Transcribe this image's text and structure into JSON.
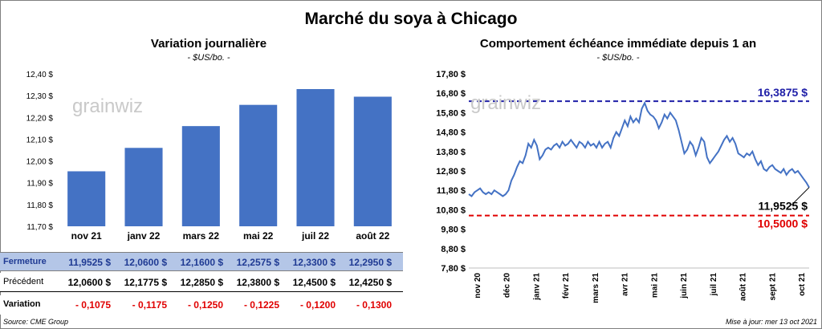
{
  "title": "Marché du soya à Chicago",
  "left_panel": {
    "title": "Variation  journalière",
    "subtitle": "- $US/bo. -"
  },
  "right_panel": {
    "title": "Comportement  échéance immédiate depuis 1 an",
    "subtitle": "- $US/bo. -"
  },
  "watermark": "grainwiz",
  "chart_data": [
    {
      "type": "bar",
      "categories": [
        "nov 21",
        "janv 22",
        "mars 22",
        "mai 22",
        "juil 22",
        "août 22"
      ],
      "values": [
        11.9525,
        12.06,
        12.16,
        12.2575,
        12.33,
        12.295
      ],
      "ylim": [
        11.7,
        12.4
      ],
      "yticks": [
        "11,70 $",
        "11,80 $",
        "11,90 $",
        "12,00 $",
        "12,10 $",
        "12,20 $",
        "12,30 $",
        "12,40 $"
      ],
      "bar_color": "#4472c4",
      "grid": false
    },
    {
      "type": "line",
      "x_labels": [
        "nov 20",
        "déc 20",
        "janv 21",
        "févr 21",
        "mars 21",
        "avr 21",
        "mai 21",
        "juin 21",
        "juil 21",
        "août 21",
        "sept 21",
        "oct 21"
      ],
      "ylim": [
        7.8,
        17.8
      ],
      "yticks": [
        "7,80 $",
        "8,80 $",
        "9,80 $",
        "10,80 $",
        "11,80 $",
        "12,80 $",
        "13,80 $",
        "14,80 $",
        "15,80 $",
        "16,80 $",
        "17,80 $"
      ],
      "series": [
        {
          "values": [
            11.6,
            11.5,
            11.7,
            11.8,
            11.9,
            11.7,
            11.6,
            11.7,
            11.6,
            11.8,
            11.7,
            11.6,
            11.5,
            11.6,
            11.8,
            12.3,
            12.6,
            13.0,
            13.3,
            13.2,
            13.6,
            14.2,
            14.0,
            14.4,
            14.1,
            13.4,
            13.6,
            13.9,
            14.0,
            13.9,
            14.1,
            14.2,
            14.0,
            14.3,
            14.1,
            14.2,
            14.4,
            14.2,
            14.0,
            14.3,
            14.2,
            14.0,
            14.3,
            14.1,
            14.2,
            14.0,
            14.3,
            14.0,
            14.2,
            14.3,
            14.0,
            14.5,
            14.8,
            14.6,
            15.0,
            15.4,
            15.1,
            15.6,
            15.3,
            15.5,
            15.3,
            16.0,
            16.3,
            15.9,
            15.7,
            15.6,
            15.4,
            15.0,
            15.3,
            15.7,
            15.5,
            15.8,
            15.6,
            15.4,
            14.9,
            14.3,
            13.7,
            13.9,
            14.3,
            14.1,
            13.6,
            14.0,
            14.5,
            14.3,
            13.5,
            13.2,
            13.4,
            13.6,
            13.8,
            14.1,
            14.4,
            14.6,
            14.3,
            14.5,
            14.2,
            13.7,
            13.6,
            13.5,
            13.7,
            13.6,
            13.8,
            13.4,
            13.1,
            13.3,
            12.9,
            12.8,
            13.0,
            13.1,
            12.9,
            12.8,
            12.7,
            12.9,
            12.6,
            12.8,
            12.9,
            12.7,
            12.8,
            12.6,
            12.4,
            12.2,
            11.95
          ]
        }
      ],
      "reference_lines": [
        {
          "value": 16.3875,
          "label": "16,3875 $",
          "color": "#1f1fa8"
        },
        {
          "value": 10.5,
          "label": "10,5000 $",
          "color": "#e00000"
        }
      ],
      "last_value_label": "11,9525 $",
      "line_color": "#4472c4"
    }
  ],
  "table": {
    "rows": [
      {
        "label": "Fermeture",
        "cells": [
          "11,9525  $",
          "12,0600  $",
          "12,1600  $",
          "12,2575  $",
          "12,3300  $",
          "12,2950  $"
        ]
      },
      {
        "label": "Précédent",
        "cells": [
          "12,0600  $",
          "12,1775  $",
          "12,2850  $",
          "12,3800  $",
          "12,4500  $",
          "12,4250  $"
        ]
      },
      {
        "label": "Variation",
        "cells": [
          "- 0,1075",
          "- 0,1175",
          "- 0,1250",
          "- 0,1225",
          "- 0,1200",
          "- 0,1300"
        ]
      }
    ]
  },
  "footer": {
    "source": "Source: CME Group",
    "update": "Mise à jour: mer 13 oct 2021"
  }
}
